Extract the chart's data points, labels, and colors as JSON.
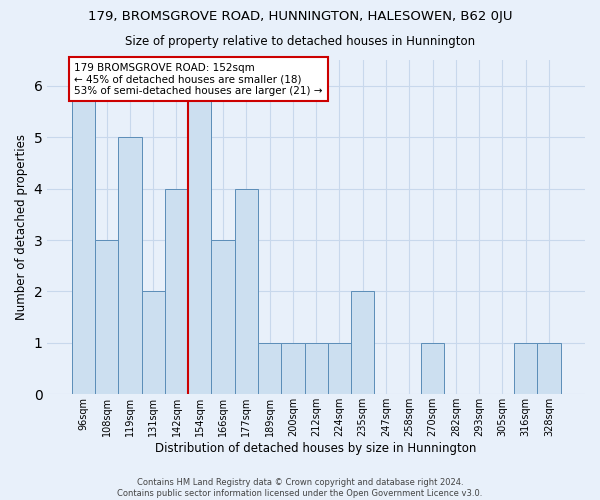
{
  "title": "179, BROMSGROVE ROAD, HUNNINGTON, HALESOWEN, B62 0JU",
  "subtitle": "Size of property relative to detached houses in Hunnington",
  "xlabel": "Distribution of detached houses by size in Hunnington",
  "ylabel": "Number of detached properties",
  "categories": [
    "96sqm",
    "108sqm",
    "119sqm",
    "131sqm",
    "142sqm",
    "154sqm",
    "166sqm",
    "177sqm",
    "189sqm",
    "200sqm",
    "212sqm",
    "224sqm",
    "235sqm",
    "247sqm",
    "258sqm",
    "270sqm",
    "282sqm",
    "293sqm",
    "305sqm",
    "316sqm",
    "328sqm"
  ],
  "values": [
    6,
    3,
    5,
    2,
    4,
    6,
    3,
    4,
    1,
    1,
    1,
    1,
    2,
    0,
    0,
    1,
    0,
    0,
    0,
    1,
    1
  ],
  "bar_color": "#ccdff0",
  "bar_edge_color": "#5b8db8",
  "background_color": "#e8f0fa",
  "grid_color": "#c8d8ec",
  "red_line_x": 5,
  "annotation_text": "179 BROMSGROVE ROAD: 152sqm\n← 45% of detached houses are smaller (18)\n53% of semi-detached houses are larger (21) →",
  "annotation_box_color": "#ffffff",
  "annotation_box_edge": "#cc0000",
  "ylim": [
    0,
    6.5
  ],
  "yticks": [
    0,
    1,
    2,
    3,
    4,
    5,
    6
  ],
  "footnote": "Contains HM Land Registry data © Crown copyright and database right 2024.\nContains public sector information licensed under the Open Government Licence v3.0.",
  "red_line_color": "#cc0000"
}
